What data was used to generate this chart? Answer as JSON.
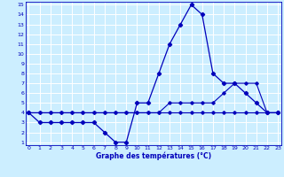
{
  "xlabel": "Graphe des températures (°C)",
  "bg_color": "#cceeff",
  "grid_color": "#aaddcc",
  "line_color": "#0000bb",
  "xmin": 0,
  "xmax": 23,
  "ymin": 1,
  "ymax": 15,
  "hours": [
    0,
    1,
    2,
    3,
    4,
    5,
    6,
    7,
    8,
    9,
    10,
    11,
    12,
    13,
    14,
    15,
    16,
    17,
    18,
    19,
    20,
    21,
    22,
    23
  ],
  "temp_main": [
    4,
    3,
    3,
    3,
    3,
    3,
    3,
    2,
    1,
    1,
    5,
    5,
    8,
    11,
    13,
    15,
    14,
    8,
    7,
    7,
    6,
    5,
    4,
    4
  ],
  "temp_upper": [
    4,
    4,
    4,
    4,
    4,
    4,
    4,
    4,
    4,
    4,
    4,
    4,
    4,
    5,
    5,
    5,
    5,
    5,
    6,
    7,
    7,
    7,
    4,
    4
  ],
  "temp_lower": [
    4,
    4,
    4,
    4,
    4,
    4,
    4,
    4,
    4,
    4,
    4,
    4,
    4,
    4,
    4,
    4,
    4,
    4,
    4,
    4,
    4,
    4,
    4,
    4
  ]
}
